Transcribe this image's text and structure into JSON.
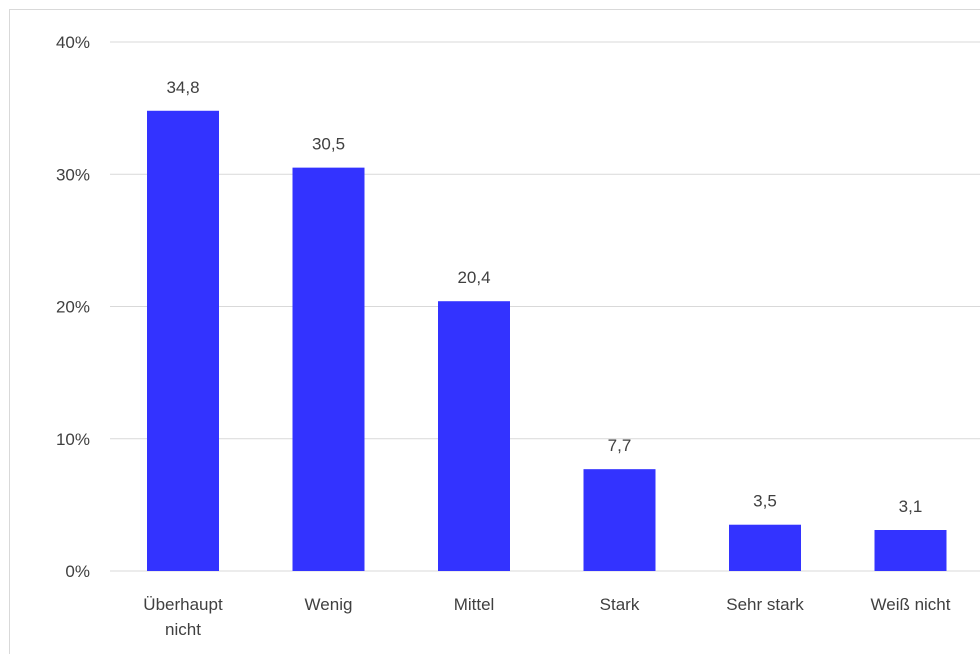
{
  "chart_data": {
    "type": "bar",
    "categories": [
      "Überhaupt nicht",
      "Wenig",
      "Mittel",
      "Stark",
      "Sehr stark",
      "Weiß nicht"
    ],
    "category_lines": [
      [
        "Überhaupt",
        "nicht"
      ],
      [
        "Wenig"
      ],
      [
        "Mittel"
      ],
      [
        "Stark"
      ],
      [
        "Sehr stark"
      ],
      [
        "Weiß nicht"
      ]
    ],
    "values": [
      34.8,
      30.5,
      20.4,
      7.7,
      3.5,
      3.1
    ],
    "data_labels": [
      "34,8",
      "30,5",
      "20,4",
      "7,7",
      "3,5",
      "3,1"
    ],
    "ylim": [
      0,
      40
    ],
    "yticks": [
      0,
      10,
      20,
      30,
      40
    ],
    "ytick_labels": [
      "0%",
      "10%",
      "20%",
      "30%",
      "40%"
    ],
    "grid": true,
    "bar_color": "#3333ff",
    "grid_color": "#d9d9d9"
  }
}
